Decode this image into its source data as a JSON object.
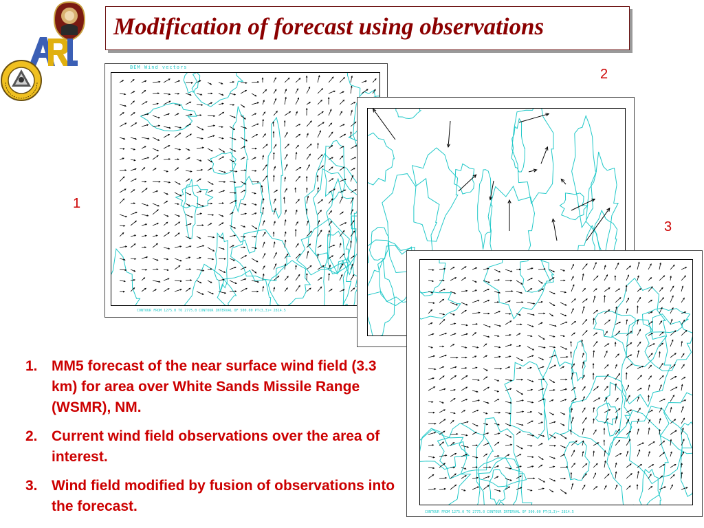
{
  "title": "Modification of forecast using observations",
  "logos": [
    "seal-logo",
    "arl-logo",
    "technology-to-win-logo"
  ],
  "colors": {
    "title": "#8b0000",
    "text": "#cc0000",
    "contour": "#20c8c8",
    "arrow": "#000000"
  },
  "panels": [
    {
      "id": 1,
      "label": "1",
      "header": "BEM  Wind vectors",
      "footer": "CONTOUR FROM   1275.0    TO   2775.0    CONTOUR INTERVAL OF   500.00    PT(3,3)=   2814.5"
    },
    {
      "id": 2,
      "label": "2",
      "header": "",
      "footer": ""
    },
    {
      "id": 3,
      "label": "3",
      "header": "",
      "footer": "CONTOUR FROM   1275.0    TO   2775.0    CONTOUR INTERVAL OF   500.00    PT(3,3)=   2814.5"
    }
  ],
  "list": [
    {
      "number": "1.",
      "text": "MM5 forecast of the near surface wind field (3.3 km) for area over White Sands Missile Range (WSMR), NM."
    },
    {
      "number": "2.",
      "text": "Current wind field observations over the area of interest."
    },
    {
      "number": "3.",
      "text": "Wind field modified by fusion of observations into the forecast."
    }
  ]
}
